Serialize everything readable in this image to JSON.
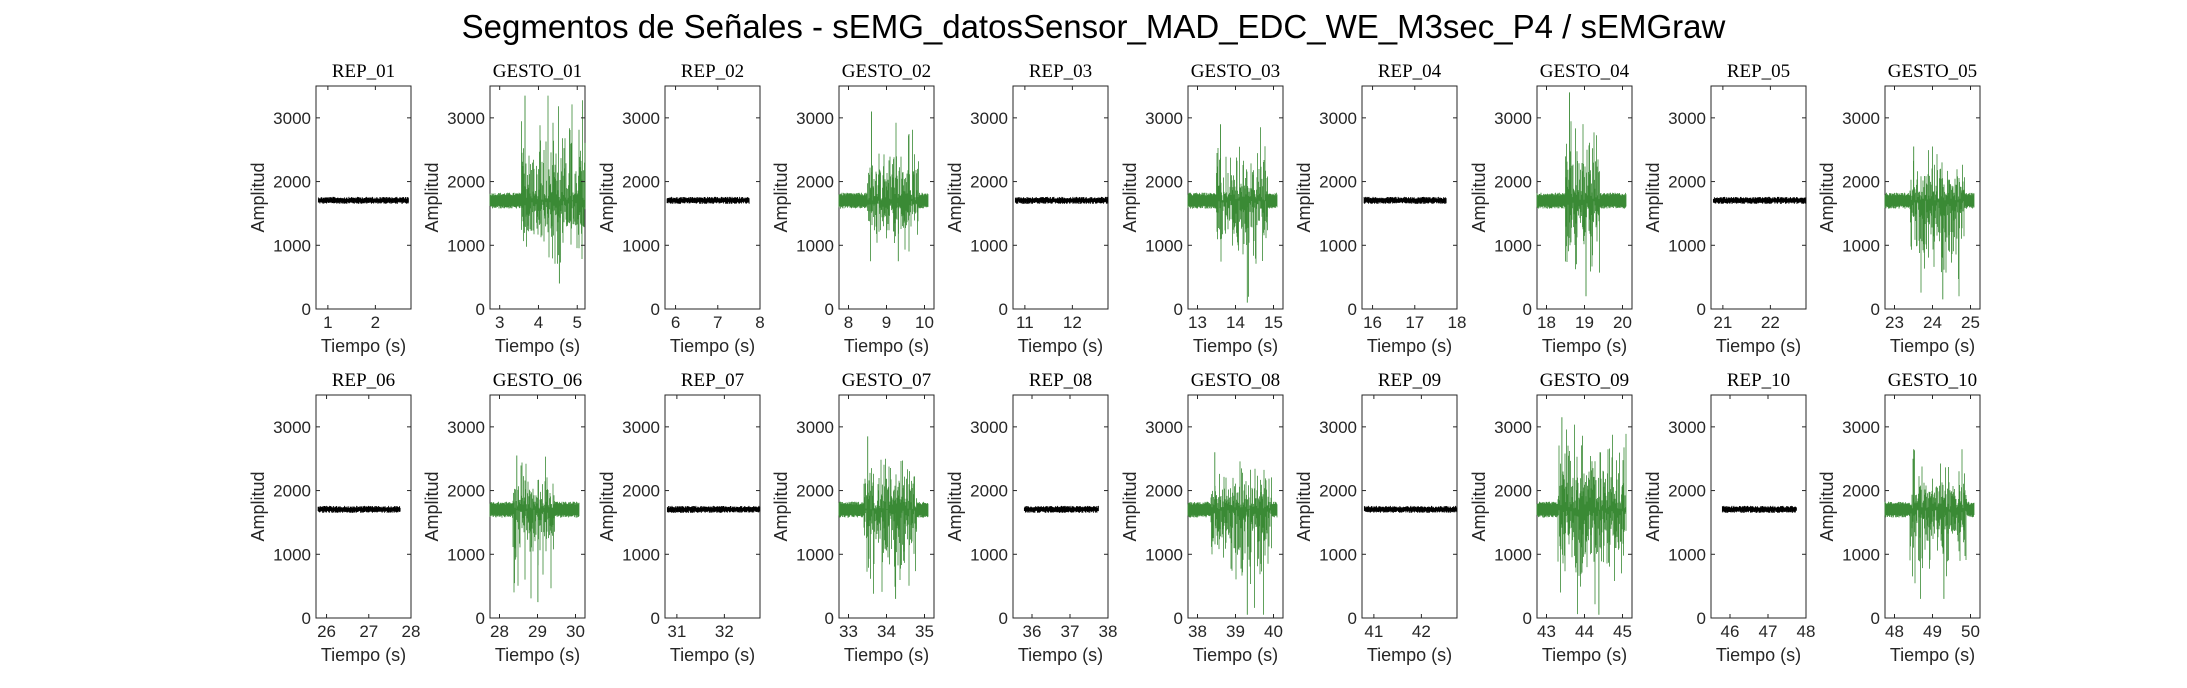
{
  "figure": {
    "title": "Segmentos de Señales - sEMG_datosSensor_MAD_EDC_WE_M3sec_P4 / sEMGraw"
  },
  "colors": {
    "rep": "#000000",
    "gesture": "#3a8a35",
    "axes": "#262626"
  },
  "chart_data": [
    {
      "type": "line",
      "title": "REP_01",
      "xlabel": "Tiempo (s)",
      "ylabel": "Amplitud",
      "xlim": [
        0.75,
        2.75
      ],
      "ylim": [
        0,
        3500
      ],
      "xticks": [
        1,
        2
      ],
      "yticks": [
        0,
        1000,
        2000,
        3000
      ],
      "signal": {
        "kind": "rest",
        "start": 0.8,
        "end": 2.7,
        "baseline": 1700,
        "spread": [
          1650,
          1760
        ]
      }
    },
    {
      "type": "line",
      "title": "GESTO_01",
      "xlabel": "Tiempo (s)",
      "ylabel": "Amplitud",
      "xlim": [
        2.75,
        5.2
      ],
      "ylim": [
        0,
        3500
      ],
      "xticks": [
        3,
        4,
        5
      ],
      "yticks": [
        0,
        1000,
        2000,
        3000
      ],
      "signal": {
        "kind": "gesture",
        "start": 2.75,
        "end": 5.2,
        "burst_start": 3.55,
        "burst_end": 5.2,
        "baseline": 1700,
        "min": 400,
        "max": 3350
      }
    },
    {
      "type": "line",
      "title": "REP_02",
      "xlabel": "Tiempo (s)",
      "ylabel": "Amplitud",
      "xlim": [
        5.75,
        8
      ],
      "ylim": [
        0,
        3500
      ],
      "xticks": [
        6,
        7,
        8
      ],
      "yticks": [
        0,
        1000,
        2000,
        3000
      ],
      "signal": {
        "kind": "rest",
        "start": 5.8,
        "end": 7.75,
        "baseline": 1700,
        "spread": [
          1650,
          1760
        ]
      }
    },
    {
      "type": "line",
      "title": "GESTO_02",
      "xlabel": "Tiempo (s)",
      "ylabel": "Amplitud",
      "xlim": [
        7.75,
        10.25
      ],
      "ylim": [
        0,
        3500
      ],
      "xticks": [
        8,
        9,
        10
      ],
      "yticks": [
        0,
        1000,
        2000,
        3000
      ],
      "signal": {
        "kind": "gesture",
        "start": 7.75,
        "end": 10.1,
        "burst_start": 8.5,
        "burst_end": 9.85,
        "baseline": 1700,
        "min": 750,
        "max": 3100
      }
    },
    {
      "type": "line",
      "title": "REP_03",
      "xlabel": "Tiempo (s)",
      "ylabel": "Amplitud",
      "xlim": [
        10.75,
        12.75
      ],
      "ylim": [
        0,
        3500
      ],
      "xticks": [
        11,
        12
      ],
      "yticks": [
        0,
        1000,
        2000,
        3000
      ],
      "signal": {
        "kind": "rest",
        "start": 10.8,
        "end": 12.75,
        "baseline": 1700,
        "spread": [
          1650,
          1760
        ]
      }
    },
    {
      "type": "line",
      "title": "GESTO_03",
      "xlabel": "Tiempo (s)",
      "ylabel": "Amplitud",
      "xlim": [
        12.75,
        15.25
      ],
      "ylim": [
        0,
        3500
      ],
      "xticks": [
        13,
        14,
        15
      ],
      "yticks": [
        0,
        1000,
        2000,
        3000
      ],
      "signal": {
        "kind": "gesture",
        "start": 12.75,
        "end": 15.1,
        "burst_start": 13.5,
        "burst_end": 14.85,
        "baseline": 1700,
        "min": 100,
        "max": 2900
      }
    },
    {
      "type": "line",
      "title": "REP_04",
      "xlabel": "Tiempo (s)",
      "ylabel": "Amplitud",
      "xlim": [
        15.75,
        18
      ],
      "ylim": [
        0,
        3500
      ],
      "xticks": [
        16,
        17,
        18
      ],
      "yticks": [
        0,
        1000,
        2000,
        3000
      ],
      "signal": {
        "kind": "rest",
        "start": 15.8,
        "end": 17.75,
        "baseline": 1700,
        "spread": [
          1650,
          1760
        ]
      }
    },
    {
      "type": "line",
      "title": "GESTO_04",
      "xlabel": "Tiempo (s)",
      "ylabel": "Amplitud",
      "xlim": [
        17.75,
        20.25
      ],
      "ylim": [
        0,
        3500
      ],
      "xticks": [
        18,
        19,
        20
      ],
      "yticks": [
        0,
        1000,
        2000,
        3000
      ],
      "signal": {
        "kind": "gesture",
        "start": 17.75,
        "end": 20.1,
        "burst_start": 18.5,
        "burst_end": 19.4,
        "baseline": 1700,
        "min": 200,
        "max": 3400
      }
    },
    {
      "type": "line",
      "title": "REP_05",
      "xlabel": "Tiempo (s)",
      "ylabel": "Amplitud",
      "xlim": [
        20.75,
        22.75
      ],
      "ylim": [
        0,
        3500
      ],
      "xticks": [
        21,
        22
      ],
      "yticks": [
        0,
        1000,
        2000,
        3000
      ],
      "signal": {
        "kind": "rest",
        "start": 20.8,
        "end": 22.75,
        "baseline": 1700,
        "spread": [
          1650,
          1760
        ]
      }
    },
    {
      "type": "line",
      "title": "GESTO_05",
      "xlabel": "Tiempo (s)",
      "ylabel": "Amplitud",
      "xlim": [
        22.75,
        25.25
      ],
      "ylim": [
        0,
        3500
      ],
      "xticks": [
        23,
        24,
        25
      ],
      "yticks": [
        0,
        1000,
        2000,
        3000
      ],
      "signal": {
        "kind": "gesture",
        "start": 22.75,
        "end": 25.1,
        "burst_start": 23.4,
        "burst_end": 24.85,
        "baseline": 1700,
        "min": 150,
        "max": 2550
      }
    },
    {
      "type": "line",
      "title": "REP_06",
      "xlabel": "Tiempo (s)",
      "ylabel": "Amplitud",
      "xlim": [
        25.75,
        28
      ],
      "ylim": [
        0,
        3500
      ],
      "xticks": [
        26,
        27,
        28
      ],
      "yticks": [
        0,
        1000,
        2000,
        3000
      ],
      "signal": {
        "kind": "rest",
        "start": 25.8,
        "end": 27.75,
        "baseline": 1700,
        "spread": [
          1650,
          1760
        ]
      }
    },
    {
      "type": "line",
      "title": "GESTO_06",
      "xlabel": "Tiempo (s)",
      "ylabel": "Amplitud",
      "xlim": [
        27.75,
        30.25
      ],
      "ylim": [
        0,
        3500
      ],
      "xticks": [
        28,
        29,
        30
      ],
      "yticks": [
        0,
        1000,
        2000,
        3000
      ],
      "signal": {
        "kind": "gesture",
        "start": 27.75,
        "end": 30.1,
        "burst_start": 28.35,
        "burst_end": 29.45,
        "baseline": 1700,
        "min": 250,
        "max": 2550
      }
    },
    {
      "type": "line",
      "title": "REP_07",
      "xlabel": "Tiempo (s)",
      "ylabel": "Amplitud",
      "xlim": [
        30.75,
        32.75
      ],
      "ylim": [
        0,
        3500
      ],
      "xticks": [
        31,
        32
      ],
      "yticks": [
        0,
        1000,
        2000,
        3000
      ],
      "signal": {
        "kind": "rest",
        "start": 30.8,
        "end": 32.75,
        "baseline": 1700,
        "spread": [
          1650,
          1760
        ]
      }
    },
    {
      "type": "line",
      "title": "GESTO_07",
      "xlabel": "Tiempo (s)",
      "ylabel": "Amplitud",
      "xlim": [
        32.75,
        35.25
      ],
      "ylim": [
        0,
        3500
      ],
      "xticks": [
        33,
        34,
        35
      ],
      "yticks": [
        0,
        1000,
        2000,
        3000
      ],
      "signal": {
        "kind": "gesture",
        "start": 32.75,
        "end": 35.1,
        "burst_start": 33.4,
        "burst_end": 34.8,
        "baseline": 1700,
        "min": 300,
        "max": 2850
      }
    },
    {
      "type": "line",
      "title": "REP_08",
      "xlabel": "Tiempo (s)",
      "ylabel": "Amplitud",
      "xlim": [
        35.5,
        38
      ],
      "ylim": [
        0,
        3500
      ],
      "xticks": [
        36,
        37,
        38
      ],
      "yticks": [
        0,
        1000,
        2000,
        3000
      ],
      "signal": {
        "kind": "rest",
        "start": 35.8,
        "end": 37.75,
        "baseline": 1700,
        "spread": [
          1650,
          1760
        ]
      }
    },
    {
      "type": "line",
      "title": "GESTO_08",
      "xlabel": "Tiempo (s)",
      "ylabel": "Amplitud",
      "xlim": [
        37.75,
        40.25
      ],
      "ylim": [
        0,
        3500
      ],
      "xticks": [
        38,
        39,
        40
      ],
      "yticks": [
        0,
        1000,
        2000,
        3000
      ],
      "signal": {
        "kind": "gesture",
        "start": 37.75,
        "end": 40.1,
        "burst_start": 38.35,
        "burst_end": 39.95,
        "baseline": 1700,
        "min": 50,
        "max": 2600
      }
    },
    {
      "type": "line",
      "title": "REP_09",
      "xlabel": "Tiempo (s)",
      "ylabel": "Amplitud",
      "xlim": [
        40.75,
        42.75
      ],
      "ylim": [
        0,
        3500
      ],
      "xticks": [
        41,
        42
      ],
      "yticks": [
        0,
        1000,
        2000,
        3000
      ],
      "signal": {
        "kind": "rest",
        "start": 40.8,
        "end": 42.75,
        "baseline": 1700,
        "spread": [
          1650,
          1760
        ]
      }
    },
    {
      "type": "line",
      "title": "GESTO_09",
      "xlabel": "Tiempo (s)",
      "ylabel": "Amplitud",
      "xlim": [
        42.75,
        45.25
      ],
      "ylim": [
        0,
        3500
      ],
      "xticks": [
        43,
        44,
        45
      ],
      "yticks": [
        0,
        1000,
        2000,
        3000
      ],
      "signal": {
        "kind": "gesture",
        "start": 42.75,
        "end": 45.1,
        "burst_start": 43.3,
        "burst_end": 45.1,
        "baseline": 1700,
        "min": 50,
        "max": 3150
      }
    },
    {
      "type": "line",
      "title": "REP_10",
      "xlabel": "Tiempo (s)",
      "ylabel": "Amplitud",
      "xlim": [
        45.5,
        48
      ],
      "ylim": [
        0,
        3500
      ],
      "xticks": [
        46,
        47,
        48
      ],
      "yticks": [
        0,
        1000,
        2000,
        3000
      ],
      "signal": {
        "kind": "rest",
        "start": 45.8,
        "end": 47.75,
        "baseline": 1700,
        "spread": [
          1650,
          1760
        ]
      }
    },
    {
      "type": "line",
      "title": "GESTO_10",
      "xlabel": "Tiempo (s)",
      "ylabel": "Amplitud",
      "xlim": [
        47.75,
        50.25
      ],
      "ylim": [
        0,
        3500
      ],
      "xticks": [
        48,
        49,
        50
      ],
      "yticks": [
        0,
        1000,
        2000,
        3000
      ],
      "signal": {
        "kind": "gesture",
        "start": 47.75,
        "end": 50.1,
        "burst_start": 48.4,
        "burst_end": 49.9,
        "baseline": 1700,
        "min": 300,
        "max": 2650
      }
    }
  ]
}
